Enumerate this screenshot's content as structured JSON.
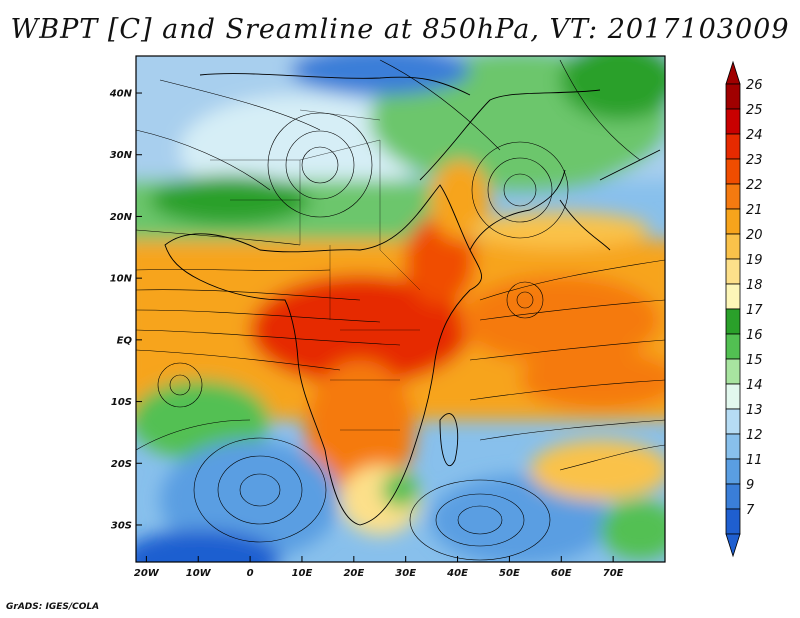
{
  "title": "WBPT [C] and Sreamline at 850hPa, VT: 2017103009",
  "credit": "GrADS: IGES/COLA",
  "map": {
    "lon_range": [
      -22,
      80
    ],
    "lat_range": [
      -36,
      46
    ],
    "lon_ticks": [
      {
        "value": -20,
        "label": "20W"
      },
      {
        "value": -10,
        "label": "10W"
      },
      {
        "value": 0,
        "label": "0"
      },
      {
        "value": 10,
        "label": "10E"
      },
      {
        "value": 20,
        "label": "20E"
      },
      {
        "value": 30,
        "label": "30E"
      },
      {
        "value": 40,
        "label": "40E"
      },
      {
        "value": 50,
        "label": "50E"
      },
      {
        "value": 60,
        "label": "60E"
      },
      {
        "value": 70,
        "label": "70E"
      }
    ],
    "lat_ticks": [
      {
        "value": 40,
        "label": "40N"
      },
      {
        "value": 30,
        "label": "30N"
      },
      {
        "value": 20,
        "label": "20N"
      },
      {
        "value": 10,
        "label": "10N"
      },
      {
        "value": 0,
        "label": "EQ"
      },
      {
        "value": -10,
        "label": "10S"
      },
      {
        "value": -20,
        "label": "20S"
      },
      {
        "value": -30,
        "label": "30S"
      }
    ]
  },
  "colorbar": {
    "levels": [
      {
        "label": "26",
        "color": "#a00000"
      },
      {
        "label": "25",
        "color": "#c80000"
      },
      {
        "label": "24",
        "color": "#e62a00"
      },
      {
        "label": "23",
        "color": "#f04d00"
      },
      {
        "label": "22",
        "color": "#f57a10"
      },
      {
        "label": "21",
        "color": "#f7a41c"
      },
      {
        "label": "20",
        "color": "#fac24a"
      },
      {
        "label": "19",
        "color": "#fde08a"
      },
      {
        "label": "18",
        "color": "#fdf6b8"
      },
      {
        "label": "17",
        "color": "#2aa02a"
      },
      {
        "label": "16",
        "color": "#52c052"
      },
      {
        "label": "15",
        "color": "#a8e4a0"
      },
      {
        "label": "14",
        "color": "#e2f8ee"
      },
      {
        "label": "13",
        "color": "#b6dcf4"
      },
      {
        "label": "12",
        "color": "#88c0ec"
      },
      {
        "label": "11",
        "color": "#5a9ee2"
      },
      {
        "label": "9",
        "color": "#3a7ed8"
      },
      {
        "label": "7",
        "color": "#1f5fd0"
      }
    ],
    "top_arrow_color": "#a00000",
    "bottom_arrow_color": "#1f5fd0"
  }
}
